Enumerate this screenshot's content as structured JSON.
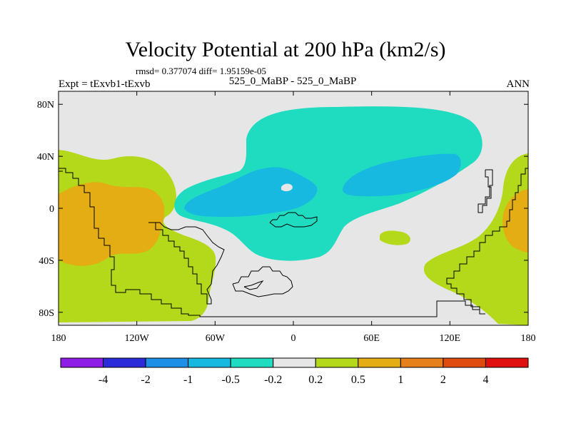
{
  "title": "Velocity Potential at 200 hPa (km2/s)",
  "stats_line": "rmsd= 0.377074 diff= 1.95159e-05",
  "left_label": "Expt = tExvb1-tExvb",
  "center_label": "525_0_MaBP - 525_0_MaBP",
  "right_label": "ANN",
  "lat_ticks": [
    {
      "value": 80,
      "label": "80N"
    },
    {
      "value": 40,
      "label": "40N"
    },
    {
      "value": 0,
      "label": "0"
    },
    {
      "value": -40,
      "label": "40S"
    },
    {
      "value": -80,
      "label": "80S"
    }
  ],
  "lon_ticks": [
    {
      "value": -180,
      "label": "180"
    },
    {
      "value": -120,
      "label": "120W"
    },
    {
      "value": -60,
      "label": "60W"
    },
    {
      "value": 0,
      "label": "0"
    },
    {
      "value": 60,
      "label": "60E"
    },
    {
      "value": 120,
      "label": "120E"
    },
    {
      "value": 180,
      "label": "180"
    }
  ],
  "colorbar": {
    "colors": [
      "#8e1ee6",
      "#2b2bd9",
      "#1e8fe6",
      "#17b9e0",
      "#1fdcc0",
      "#e6e6e6",
      "#b4d81a",
      "#e3ad13",
      "#e6801a",
      "#e04c10",
      "#e01010"
    ],
    "labels": [
      "-4",
      "-2",
      "-1",
      "-0.5",
      "-0.2",
      "0.2",
      "0.5",
      "1",
      "2",
      "4"
    ]
  },
  "colors": {
    "background_band": "#e6e6e6",
    "teal": "#1fdcc0",
    "cyan": "#17b9e0",
    "lime": "#b4d81a",
    "orange": "#e3ad13"
  }
}
